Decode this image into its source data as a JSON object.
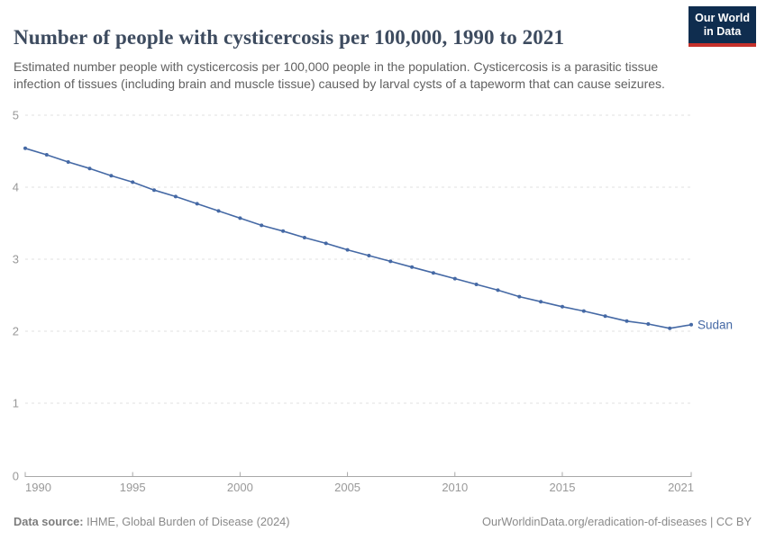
{
  "header": {
    "title": "Number of people with cysticercosis per 100,000, 1990 to 2021",
    "subtitle": "Estimated number people with cysticercosis per 100,000 people in the population. Cysticercosis is a parasitic tissue infection of tissues (including brain and muscle tissue) caused by larval cysts of a tapeworm that can cause seizures.",
    "logo": {
      "line1": "Our World",
      "line2": "in Data",
      "bg_color": "#0f2d4f",
      "accent_color": "#c5312b"
    }
  },
  "chart_data": {
    "type": "line",
    "title": "Number of people with cysticercosis per 100,000, 1990 to 2021",
    "x": [
      1990,
      1991,
      1992,
      1993,
      1994,
      1995,
      1996,
      1997,
      1998,
      1999,
      2000,
      2001,
      2002,
      2003,
      2004,
      2005,
      2006,
      2007,
      2008,
      2009,
      2010,
      2011,
      2012,
      2013,
      2014,
      2015,
      2016,
      2017,
      2018,
      2019,
      2020,
      2021
    ],
    "series": [
      {
        "name": "Sudan",
        "color": "#4569a5",
        "values": [
          4.54,
          4.45,
          4.35,
          4.26,
          4.16,
          4.07,
          3.96,
          3.87,
          3.77,
          3.67,
          3.57,
          3.47,
          3.39,
          3.3,
          3.22,
          3.13,
          3.05,
          2.97,
          2.89,
          2.81,
          2.73,
          2.65,
          2.57,
          2.48,
          2.41,
          2.34,
          2.28,
          2.21,
          2.14,
          2.1,
          2.04,
          2.09
        ]
      }
    ],
    "x_ticks": [
      1990,
      1995,
      2000,
      2005,
      2010,
      2015,
      2021
    ],
    "y_ticks": [
      0,
      1,
      2,
      3,
      4,
      5
    ],
    "xlim": [
      1990,
      2021
    ],
    "ylim": [
      0,
      5
    ],
    "grid": "horizontal-dashed",
    "legend_position": "end-of-line-label",
    "colors": {
      "gridline": "#e2e2e2",
      "axis": "#a8a8a8",
      "tick_label": "#999999"
    }
  },
  "footer": {
    "datasource_label": "Data source:",
    "datasource_value": " IHME, Global Burden of Disease (2024)",
    "link": "OurWorldinData.org/eradication-of-diseases | CC BY"
  }
}
